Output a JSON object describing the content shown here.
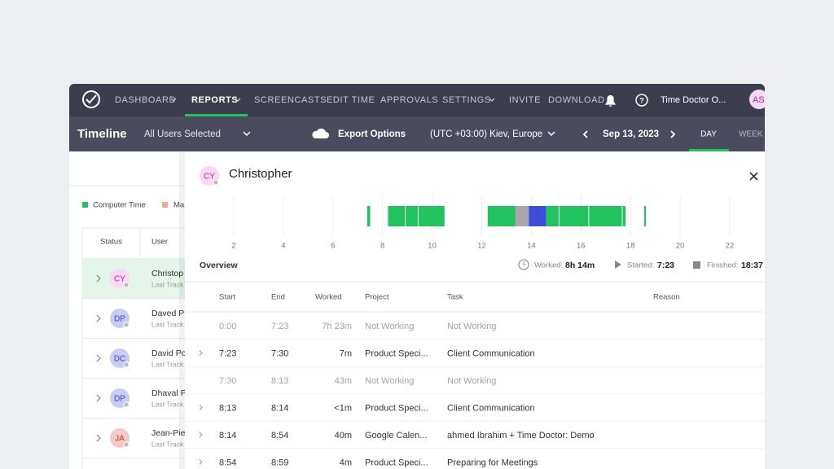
{
  "nav": {
    "items": [
      "DASHBOARD",
      "REPORTS",
      "SCREENCASTS",
      "EDIT TIME",
      "APPROVALS",
      "SETTINGS",
      "INVITE",
      "DOWNLOAD"
    ],
    "account": "Time Doctor O...",
    "avatar": "AS"
  },
  "toolbar": {
    "title": "Timeline",
    "users": "All Users Selected",
    "export": "Export Options",
    "timezone": "(UTC +03:00) Kiev, Europe",
    "date": "Sep 13, 2023",
    "views": [
      "DAY",
      "WEEK"
    ]
  },
  "legend": [
    "Computer Time",
    "Ma"
  ],
  "user_table": {
    "headers": [
      "Status",
      "User"
    ],
    "rows": [
      {
        "initials": "CY",
        "name": "Christop",
        "sub": "Last Track"
      },
      {
        "initials": "DP",
        "name": "Daved P",
        "sub": "Last Track"
      },
      {
        "initials": "DC",
        "name": "David Po",
        "sub": "Last Track"
      },
      {
        "initials": "DP",
        "name": "Dhaval P",
        "sub": "Last Track"
      },
      {
        "initials": "JA",
        "name": "Jean-Pie",
        "sub": "Last Track"
      }
    ]
  },
  "drawer": {
    "initials": "CY",
    "name": "Christopher",
    "timeline": {
      "xlim": [
        2,
        22
      ],
      "xticks": [
        2,
        4,
        6,
        8,
        10,
        12,
        14,
        16,
        18,
        20,
        22
      ],
      "segments": [
        {
          "start": 7.38,
          "end": 7.5,
          "color": "#22c35e"
        },
        {
          "start": 8.22,
          "end": 8.9,
          "color": "#22c35e"
        },
        {
          "start": 8.93,
          "end": 9.42,
          "color": "#22c35e"
        },
        {
          "start": 9.45,
          "end": 10.5,
          "color": "#22c35e"
        },
        {
          "start": 12.24,
          "end": 13.36,
          "color": "#22c35e"
        },
        {
          "start": 13.36,
          "end": 13.9,
          "color": "#a7a7ad"
        },
        {
          "start": 13.9,
          "end": 14.6,
          "color": "#3b4fd8"
        },
        {
          "start": 14.6,
          "end": 15.1,
          "color": "#22c35e"
        },
        {
          "start": 15.13,
          "end": 16.3,
          "color": "#22c35e"
        },
        {
          "start": 16.33,
          "end": 17.65,
          "color": "#22c35e"
        },
        {
          "start": 17.68,
          "end": 17.8,
          "color": "#22c35e"
        },
        {
          "start": 18.55,
          "end": 18.62,
          "color": "#22c35e"
        }
      ]
    },
    "overview": {
      "label": "Overview",
      "worked_label": "Worked:",
      "worked": "8h 14m",
      "started_label": "Started:",
      "started": "7:23",
      "finished_label": "Finished:",
      "finished": "18:37"
    },
    "table": {
      "headers": [
        "Start",
        "End",
        "Worked",
        "Project",
        "Task",
        "Reason"
      ],
      "rows": [
        [
          "0:00",
          "7:23",
          "7h 23m",
          "Not Working",
          "Not Working"
        ],
        [
          "7:23",
          "7:30",
          "7m",
          "Product Speci...",
          "Client Communication"
        ],
        [
          "7:30",
          "8:13",
          "43m",
          "Not Working",
          "Not Working"
        ],
        [
          "8:13",
          "8:14",
          "<1m",
          "Product Speci...",
          "Client Communication"
        ],
        [
          "8:14",
          "8:54",
          "40m",
          "Google Calen...",
          "ahmed Ibrahim + Time Doctor: Demo"
        ],
        [
          "8:54",
          "8:59",
          "4m",
          "Product Speci...",
          "Preparing for Meetings"
        ]
      ]
    }
  }
}
